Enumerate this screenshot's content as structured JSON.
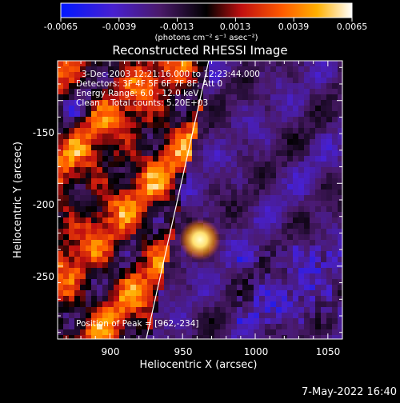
{
  "colorbar": {
    "ticks": [
      "-0.0065",
      "-0.0039",
      "-0.0013",
      "0.0013",
      "0.0039",
      "0.0065"
    ],
    "units": "(photons cm⁻² s⁻¹ asec⁻²)"
  },
  "title": "Reconstructed RHESSI Image",
  "info": [
    "3-Dec-2003 12:21:16.000 to 12:23:44.000",
    "Detectors: 3F 4F 5F 6F 7F 8F; Att 0",
    "Energy Range: 6.0 - 12.0 keV",
    "Clean    Total counts: 5.20E+03"
  ],
  "peak_text": "Position of Peak = [962,-234]",
  "footer_date": "7-May-2022 16:40",
  "chart_data": {
    "type": "heatmap",
    "xlabel": "Heliocentric X (arcsec)",
    "ylabel": "Heliocentric Y (arcsec)",
    "xlim": [
      864,
      1060
    ],
    "ylim": [
      -294,
      -126
    ],
    "x_ticks": [
      900,
      950,
      1000,
      1050
    ],
    "y_ticks": [
      -150,
      -200,
      -250
    ],
    "color_range": [
      -0.0065,
      0.0065
    ],
    "colormap": "blue-purple-black-red-orange-yellow-white",
    "peak": [
      962,
      -234
    ],
    "limb_line": {
      "x": [
        925,
        968
      ],
      "y": [
        -294,
        -126
      ]
    }
  }
}
